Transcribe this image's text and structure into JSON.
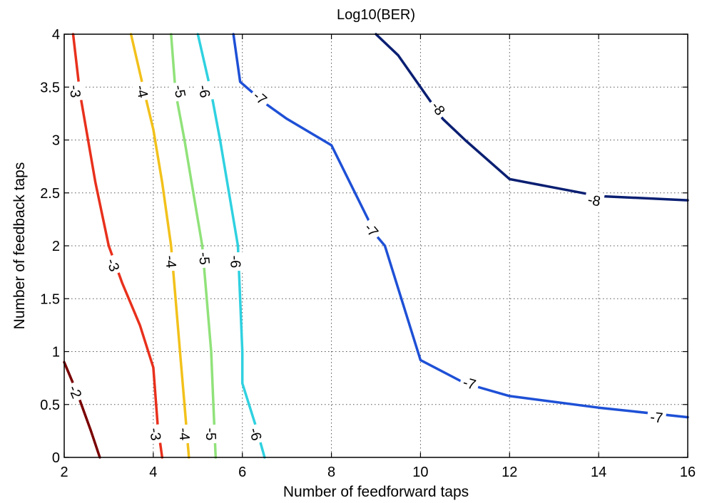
{
  "chart_data": {
    "type": "line",
    "subtype": "contour",
    "title": "Log10(BER)",
    "xlabel": "Number of feedforward taps",
    "ylabel": "Number of feedback taps",
    "xlim": [
      2,
      16
    ],
    "ylim": [
      0,
      4
    ],
    "xticks": [
      2,
      4,
      6,
      8,
      10,
      12,
      14,
      16
    ],
    "yticks": [
      0,
      0.5,
      1,
      1.5,
      2,
      2.5,
      3,
      3.5,
      4
    ],
    "xtick_labels": [
      "2",
      "4",
      "6",
      "8",
      "10",
      "12",
      "14",
      "16"
    ],
    "ytick_labels": [
      "0",
      "0.5",
      "1",
      "1.5",
      "2",
      "2.5",
      "3",
      "3.5",
      "4"
    ],
    "grid": true,
    "series": [
      {
        "level": -2,
        "color": "#7a0000",
        "points": [
          [
            2.0,
            0.9
          ],
          [
            2.3,
            0.6
          ],
          [
            2.6,
            0.25
          ],
          [
            2.8,
            0.0
          ]
        ],
        "labels": [
          {
            "x": 2.25,
            "y": 0.62,
            "text": "-2"
          }
        ]
      },
      {
        "level": -3,
        "color": "#e8301c",
        "points": [
          [
            2.2,
            4.0
          ],
          [
            2.35,
            3.45
          ],
          [
            2.7,
            2.6
          ],
          [
            3.0,
            2.0
          ],
          [
            3.3,
            1.65
          ],
          [
            3.7,
            1.25
          ],
          [
            4.0,
            0.85
          ],
          [
            4.1,
            0.3
          ],
          [
            4.2,
            0.0
          ]
        ],
        "labels": [
          {
            "x": 2.25,
            "y": 3.46,
            "text": "-3"
          },
          {
            "x": 3.1,
            "y": 1.82,
            "text": "-3"
          },
          {
            "x": 4.05,
            "y": 0.22,
            "text": "-3"
          }
        ]
      },
      {
        "level": -4,
        "color": "#f2c11b",
        "points": [
          [
            3.5,
            4.0
          ],
          [
            3.8,
            3.45
          ],
          [
            4.0,
            3.1
          ],
          [
            4.2,
            2.6
          ],
          [
            4.4,
            2.0
          ],
          [
            4.5,
            1.5
          ],
          [
            4.6,
            1.0
          ],
          [
            4.7,
            0.5
          ],
          [
            4.8,
            0.0
          ]
        ],
        "labels": [
          {
            "x": 3.75,
            "y": 3.46,
            "text": "-4"
          },
          {
            "x": 4.4,
            "y": 1.85,
            "text": "-4"
          },
          {
            "x": 4.7,
            "y": 0.22,
            "text": "-4"
          }
        ]
      },
      {
        "level": -5,
        "color": "#90e27a",
        "points": [
          [
            4.4,
            4.0
          ],
          [
            4.5,
            3.45
          ],
          [
            4.7,
            3.0
          ],
          [
            4.9,
            2.5
          ],
          [
            5.1,
            2.0
          ],
          [
            5.2,
            1.5
          ],
          [
            5.3,
            1.0
          ],
          [
            5.35,
            0.5
          ],
          [
            5.4,
            0.0
          ]
        ],
        "labels": [
          {
            "x": 4.6,
            "y": 3.46,
            "text": "-5"
          },
          {
            "x": 5.15,
            "y": 1.88,
            "text": "-5"
          },
          {
            "x": 5.3,
            "y": 0.22,
            "text": "-5"
          }
        ]
      },
      {
        "level": -6,
        "color": "#2fd1e0",
        "points": [
          [
            5.0,
            4.0
          ],
          [
            5.3,
            3.45
          ],
          [
            5.5,
            3.0
          ],
          [
            5.7,
            2.5
          ],
          [
            5.9,
            2.0
          ],
          [
            5.95,
            1.5
          ],
          [
            6.0,
            1.0
          ],
          [
            6.0,
            0.7
          ],
          [
            6.3,
            0.3
          ],
          [
            6.5,
            0.0
          ]
        ],
        "labels": [
          {
            "x": 5.15,
            "y": 3.46,
            "text": "-6"
          },
          {
            "x": 5.85,
            "y": 1.85,
            "text": "-6"
          },
          {
            "x": 6.3,
            "y": 0.22,
            "text": "-6"
          }
        ]
      },
      {
        "level": -7,
        "color": "#1e50d6",
        "points": [
          [
            5.8,
            4.0
          ],
          [
            5.95,
            3.55
          ],
          [
            6.5,
            3.35
          ],
          [
            7.0,
            3.2
          ],
          [
            8.0,
            2.95
          ],
          [
            9.0,
            2.1
          ],
          [
            9.2,
            2.0
          ],
          [
            10.0,
            0.92
          ],
          [
            11.0,
            0.7
          ],
          [
            12.0,
            0.58
          ],
          [
            14.0,
            0.47
          ],
          [
            16.0,
            0.38
          ]
        ],
        "labels": [
          {
            "x": 6.4,
            "y": 3.4,
            "text": "-7"
          },
          {
            "x": 8.9,
            "y": 2.15,
            "text": "-7"
          },
          {
            "x": 11.1,
            "y": 0.7,
            "text": "-7"
          },
          {
            "x": 15.3,
            "y": 0.38,
            "text": "-7"
          }
        ]
      },
      {
        "level": -8,
        "color": "#0a1f72",
        "points": [
          [
            9.0,
            4.0
          ],
          [
            9.5,
            3.8
          ],
          [
            10.0,
            3.5
          ],
          [
            10.5,
            3.2
          ],
          [
            11.0,
            3.0
          ],
          [
            12.0,
            2.63
          ],
          [
            14.0,
            2.47
          ],
          [
            16.0,
            2.43
          ]
        ],
        "labels": [
          {
            "x": 10.4,
            "y": 3.3,
            "text": "-8"
          },
          {
            "x": 13.9,
            "y": 2.43,
            "text": "-8"
          }
        ]
      }
    ]
  }
}
